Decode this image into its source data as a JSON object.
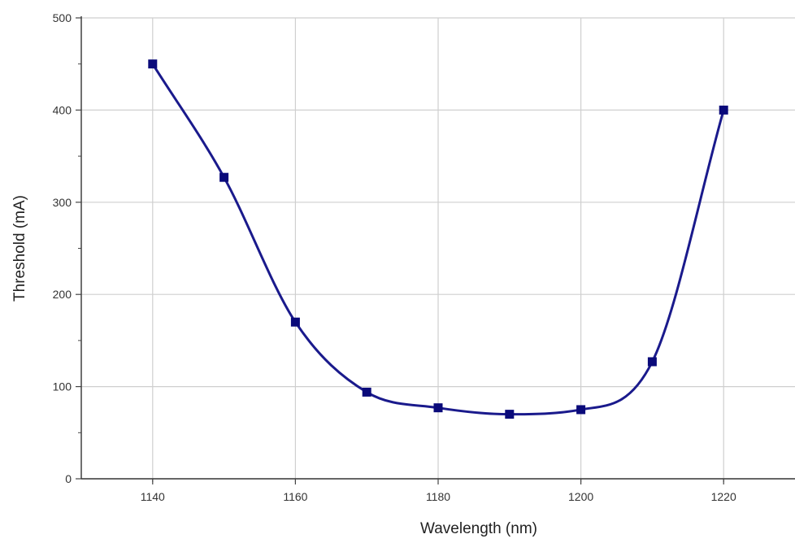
{
  "chart_data": {
    "type": "line",
    "title": "",
    "xlabel": "Wavelength (nm)",
    "ylabel": "Threshold (mA)",
    "x": [
      1140,
      1150,
      1160,
      1170,
      1180,
      1190,
      1200,
      1210,
      1220
    ],
    "series": [
      {
        "values": [
          450,
          327,
          170,
          94,
          77,
          70,
          75,
          127,
          400
        ]
      }
    ],
    "xlim": [
      1130,
      1230
    ],
    "ylim": [
      0,
      500
    ],
    "xticks": [
      "1140",
      "1160",
      "1180",
      "1200",
      "1220"
    ],
    "yticks": [
      "0",
      "100",
      "200",
      "300",
      "400",
      "500"
    ],
    "grid": true,
    "smooth": true,
    "marker": "square",
    "line_color": "#1a1a8c",
    "marker_color": "#0a0a7a"
  }
}
